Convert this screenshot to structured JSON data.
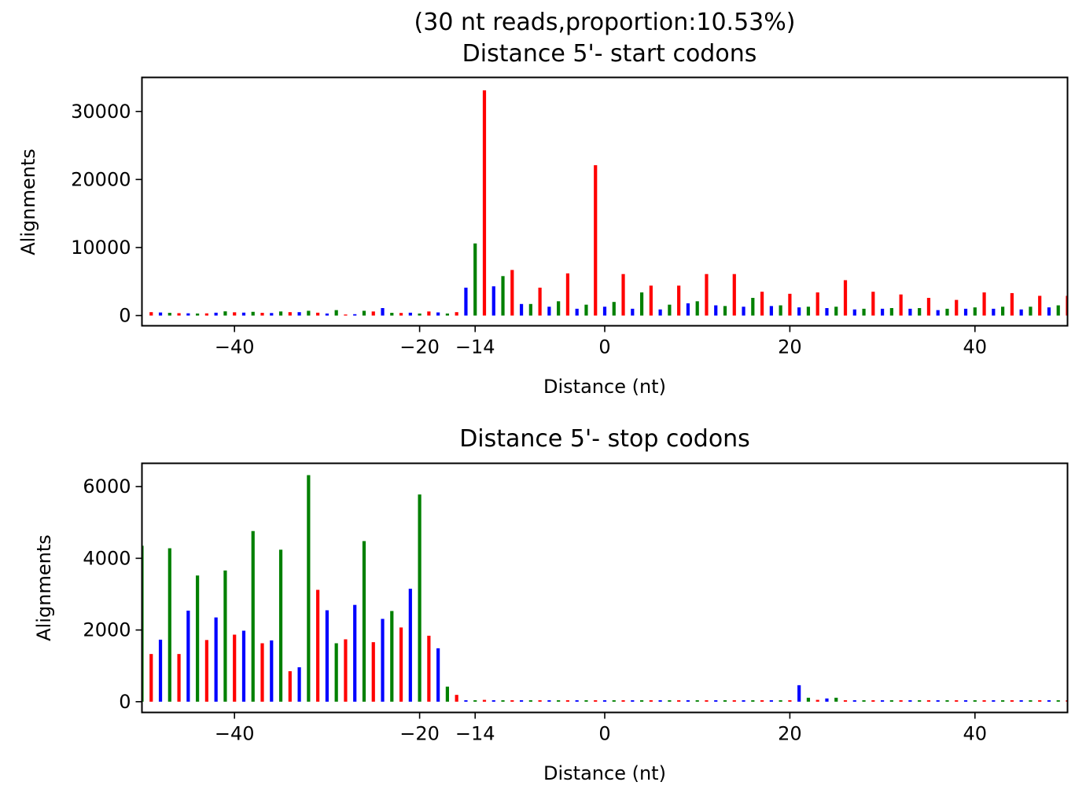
{
  "chart_data": [
    {
      "type": "bar",
      "title_lines": [
        "(30 nt reads,proportion:10.53%)",
        "Distance 5'- start codons"
      ],
      "xlabel": "Distance (nt)",
      "ylabel": "Alignments",
      "xlim": [
        -50,
        50
      ],
      "ylim": [
        -1500,
        35000
      ],
      "xticks": [
        -40,
        -20,
        -14,
        0,
        20,
        40
      ],
      "xtick_labels": [
        "−40",
        "−20",
        "−14",
        "0",
        "20",
        "40"
      ],
      "yticks": [
        0,
        10000,
        20000,
        30000
      ],
      "ytick_labels": [
        "0",
        "10000",
        "20000",
        "30000"
      ],
      "frame_colors": [
        "#0000ff",
        "#008000",
        "#ff0000"
      ],
      "x": [
        -50,
        -49,
        -48,
        -47,
        -46,
        -45,
        -44,
        -43,
        -42,
        -41,
        -40,
        -39,
        -38,
        -37,
        -36,
        -35,
        -34,
        -33,
        -32,
        -31,
        -30,
        -29,
        -28,
        -27,
        -26,
        -25,
        -24,
        -23,
        -22,
        -21,
        -20,
        -19,
        -18,
        -17,
        -16,
        -15,
        -14,
        -13,
        -12,
        -11,
        -10,
        -9,
        -8,
        -7,
        -6,
        -5,
        -4,
        -3,
        -2,
        -1,
        0,
        1,
        2,
        3,
        4,
        5,
        6,
        7,
        8,
        9,
        10,
        11,
        12,
        13,
        14,
        15,
        16,
        17,
        18,
        19,
        20,
        21,
        22,
        23,
        24,
        25,
        26,
        27,
        28,
        29,
        30,
        31,
        32,
        33,
        34,
        35,
        36,
        37,
        38,
        39,
        40,
        41,
        42,
        43,
        44,
        45,
        46,
        47,
        48,
        49,
        50
      ],
      "values": [
        0,
        500,
        450,
        400,
        350,
        330,
        300,
        320,
        420,
        620,
        480,
        430,
        550,
        400,
        370,
        600,
        500,
        500,
        700,
        420,
        300,
        800,
        150,
        200,
        700,
        600,
        1100,
        400,
        380,
        420,
        300,
        600,
        460,
        300,
        500,
        4100,
        10600,
        33100,
        4300,
        5800,
        6700,
        1700,
        1700,
        4100,
        1300,
        2100,
        6200,
        1000,
        1600,
        22100,
        1300,
        2000,
        6100,
        1000,
        3400,
        4400,
        900,
        1600,
        4400,
        1800,
        2100,
        6100,
        1500,
        1400,
        6100,
        1300,
        2600,
        3500,
        1400,
        1500,
        3200,
        1200,
        1300,
        3400,
        1100,
        1300,
        5200,
        900,
        1000,
        3500,
        1000,
        1100,
        3100,
        1000,
        1100,
        2600,
        800,
        1000,
        2300,
        1000,
        1200,
        3400,
        1000,
        1300,
        3300,
        900,
        1300,
        2900,
        1200,
        1500,
        2900
      ]
    },
    {
      "type": "bar",
      "title_lines": [
        "Distance 5'- stop codons"
      ],
      "xlabel": "Distance (nt)",
      "ylabel": "Alignments",
      "xlim": [
        -50,
        50
      ],
      "ylim": [
        -300,
        6650
      ],
      "xticks": [
        -40,
        -20,
        -14,
        0,
        20,
        40
      ],
      "xtick_labels": [
        "−40",
        "−20",
        "−14",
        "0",
        "20",
        "40"
      ],
      "yticks": [
        0,
        2000,
        4000,
        6000
      ],
      "ytick_labels": [
        "0",
        "2000",
        "4000",
        "6000"
      ],
      "frame_colors": [
        "#0000ff",
        "#008000",
        "#ff0000"
      ],
      "x": [
        -50,
        -49,
        -48,
        -47,
        -46,
        -45,
        -44,
        -43,
        -42,
        -41,
        -40,
        -39,
        -38,
        -37,
        -36,
        -35,
        -34,
        -33,
        -32,
        -31,
        -30,
        -29,
        -28,
        -27,
        -26,
        -25,
        -24,
        -23,
        -22,
        -21,
        -20,
        -19,
        -18,
        -17,
        -16,
        -15,
        -14,
        -13,
        -12,
        -11,
        -10,
        -9,
        -8,
        -7,
        -6,
        -5,
        -4,
        -3,
        -2,
        -1,
        0,
        1,
        2,
        3,
        4,
        5,
        6,
        7,
        8,
        9,
        10,
        11,
        12,
        13,
        14,
        15,
        16,
        17,
        18,
        19,
        20,
        21,
        22,
        23,
        24,
        25,
        26,
        27,
        28,
        29,
        30,
        31,
        32,
        33,
        34,
        35,
        36,
        37,
        38,
        39,
        40,
        41,
        42,
        43,
        44,
        45,
        46,
        47,
        48,
        49,
        50
      ],
      "values": [
        4350,
        1330,
        1730,
        4280,
        1330,
        2540,
        3520,
        1720,
        2350,
        3660,
        1870,
        1980,
        4760,
        1630,
        1710,
        4240,
        850,
        960,
        6320,
        3120,
        2550,
        1630,
        1740,
        2700,
        4480,
        1660,
        2310,
        2530,
        2070,
        3150,
        5780,
        1840,
        1490,
        420,
        190,
        40,
        40,
        50,
        40,
        40,
        40,
        40,
        40,
        40,
        40,
        40,
        40,
        40,
        40,
        40,
        40,
        40,
        40,
        40,
        40,
        40,
        40,
        40,
        40,
        40,
        40,
        40,
        40,
        40,
        40,
        40,
        40,
        40,
        40,
        40,
        40,
        460,
        110,
        50,
        90,
        110,
        40,
        40,
        40,
        40,
        40,
        40,
        40,
        40,
        40,
        40,
        40,
        40,
        40,
        40,
        40,
        40,
        40,
        40,
        40,
        40,
        40,
        40,
        40,
        40,
        40
      ]
    }
  ]
}
